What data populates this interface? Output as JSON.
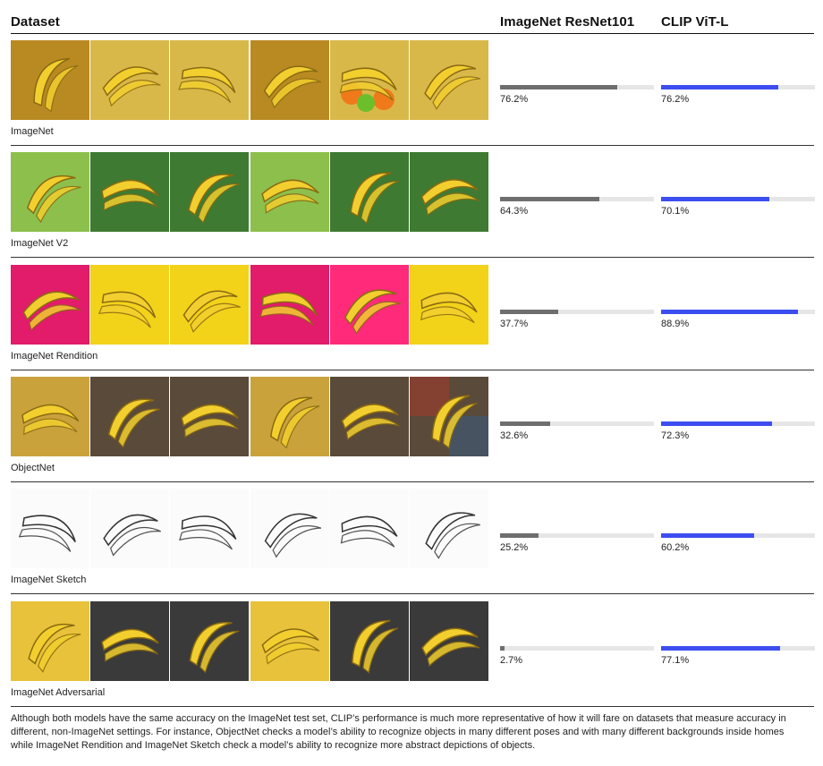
{
  "header": {
    "dataset": "Dataset",
    "model_a": "ImageNet ResNet101",
    "model_b": "CLIP ViT-L"
  },
  "colors": {
    "resnet_bar": "#6e6e6e",
    "clip_bar": "#3d4ef0",
    "track": "#e6e6e6"
  },
  "chart_data": {
    "type": "bar",
    "categories": [
      "ImageNet",
      "ImageNet V2",
      "ImageNet Rendition",
      "ObjectNet",
      "ImageNet Sketch",
      "ImageNet Adversarial"
    ],
    "series": [
      {
        "name": "ImageNet ResNet101",
        "values": [
          76.2,
          64.3,
          37.7,
          32.6,
          25.2,
          2.7
        ],
        "labels": [
          "76.2%",
          "64.3%",
          "37.7%",
          "32.6%",
          "25.2%",
          "2.7%"
        ]
      },
      {
        "name": "CLIP ViT-L",
        "values": [
          76.2,
          70.1,
          88.9,
          72.3,
          60.2,
          77.1
        ],
        "labels": [
          "76.2%",
          "70.1%",
          "88.9%",
          "72.3%",
          "60.2%",
          "77.1%"
        ]
      }
    ],
    "ylim": [
      0,
      100
    ]
  },
  "rows": [
    {
      "label": "ImageNet",
      "thumbs": [
        "banana-bunch-photo",
        "fruit-market-photo",
        "banana-basket-photo",
        "banana-stand-photo",
        "fruit-mix-photo",
        "banana-pile-photo"
      ]
    },
    {
      "label": "ImageNet V2",
      "thumbs": [
        "banana-tree-photo",
        "juice-glass-photo",
        "banana-plant-photo",
        "peeled-banana-photo",
        "green-bananas-photo",
        "fruit-bowl-photo"
      ]
    },
    {
      "label": "ImageNet Rendition",
      "thumbs": [
        "banana-character-art",
        "banana-plush-toys",
        "banana-painting",
        "banana-sketch-color",
        "banana-cartoon-pink",
        "banana-sticker-art"
      ]
    },
    {
      "label": "ObjectNet",
      "thumbs": [
        "banana-hanging-photo",
        "banana-on-floor-photo",
        "banana-in-hand-photo",
        "banana-hand-blur-photo",
        "banana-on-rug-photo",
        "banana-on-tiles-photo"
      ]
    },
    {
      "label": "ImageNet Sketch",
      "thumbs": [
        "banana-pencil-sketch",
        "banana-line-drawing",
        "banana-outline-sketch",
        "banana-shaded-sketch",
        "banana-peel-sketch",
        "banana-gray-sketch"
      ]
    },
    {
      "label": "ImageNet Adversarial",
      "thumbs": [
        "banana-bw-photo",
        "banana-plate-photo",
        "banana-yellow-blur",
        "banana-striped-plate",
        "banana-wall-photo",
        "banana-patio-photo"
      ]
    }
  ],
  "caption": "Although both models have the same accuracy on the ImageNet test set, CLIP’s performance is much more representative of how it will fare on datasets that measure accuracy in different, non-ImageNet settings. For instance, ObjectNet checks a model’s ability to recognize objects in many different poses and with many different backgrounds inside homes while ImageNet Rendition and ImageNet Sketch check a model’s ability to recognize more abstract depictions of objects."
}
